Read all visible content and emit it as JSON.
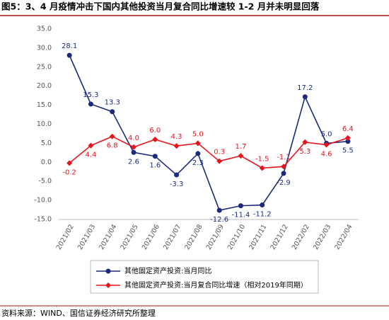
{
  "chart_data": {
    "type": "line",
    "title": "图5：3、4 月疫情冲击下国内其他投资当月复合同比增速较 1-2 月并未明显回落",
    "source": "资料来源：WIND、国信证券经济研究所整理",
    "categories": [
      "2021/02",
      "2021/03",
      "2021/04",
      "2021/05",
      "2021/06",
      "2021/07",
      "2021/08",
      "2021/09",
      "2021/10",
      "2021/11",
      "2021/12",
      "2022/02",
      "2022/03",
      "2022/04"
    ],
    "series": [
      {
        "name": "其他固定资产投资:当月同比",
        "color": "#1b2a7a",
        "marker": "circle",
        "values": [
          28.1,
          15.3,
          13.3,
          2.6,
          1.6,
          -3.3,
          2.3,
          -12.6,
          -11.4,
          -11.2,
          -2.9,
          17.2,
          5.0,
          5.5
        ],
        "value_labels": [
          "28.1",
          "15.3",
          "13.3",
          "2.6",
          "1.6",
          "-3.3",
          "2.3",
          "-12.6",
          "-11.4",
          "-11.2",
          "-2.9",
          "17.2",
          "5.0",
          "5.5"
        ]
      },
      {
        "name": "其他固定资产投资:当月复合同比增速（相对2019年同期）",
        "color": "#e8141c",
        "marker": "diamond",
        "values": [
          -0.2,
          4.4,
          6.8,
          4.0,
          6.0,
          4.3,
          5.0,
          0.3,
          1.7,
          -1.5,
          -1.1,
          5.3,
          4.6,
          6.4
        ],
        "value_labels": [
          "-0.2",
          "4.4",
          "6.8",
          "4.0",
          "6.0",
          "4.3",
          "5.0",
          "0.3",
          "1.7",
          "-1.5",
          "-1.1",
          "5.3",
          "4.6",
          "6.4"
        ]
      }
    ],
    "ylim": [
      -15,
      35
    ],
    "yticks": [
      {
        "value": -15,
        "label": "-15.0"
      },
      {
        "value": -10,
        "label": "-10.0"
      },
      {
        "value": -5,
        "label": "-5.0"
      },
      {
        "value": 0,
        "label": "0.0"
      },
      {
        "value": 5,
        "label": "5.0"
      },
      {
        "value": 10,
        "label": "10.0"
      },
      {
        "value": 15,
        "label": "15.0"
      },
      {
        "value": 20,
        "label": "20.0"
      },
      {
        "value": 25,
        "label": "25.0"
      },
      {
        "value": 30,
        "label": "30.0"
      },
      {
        "value": 35,
        "label": "35.0"
      }
    ],
    "grid": false
  }
}
